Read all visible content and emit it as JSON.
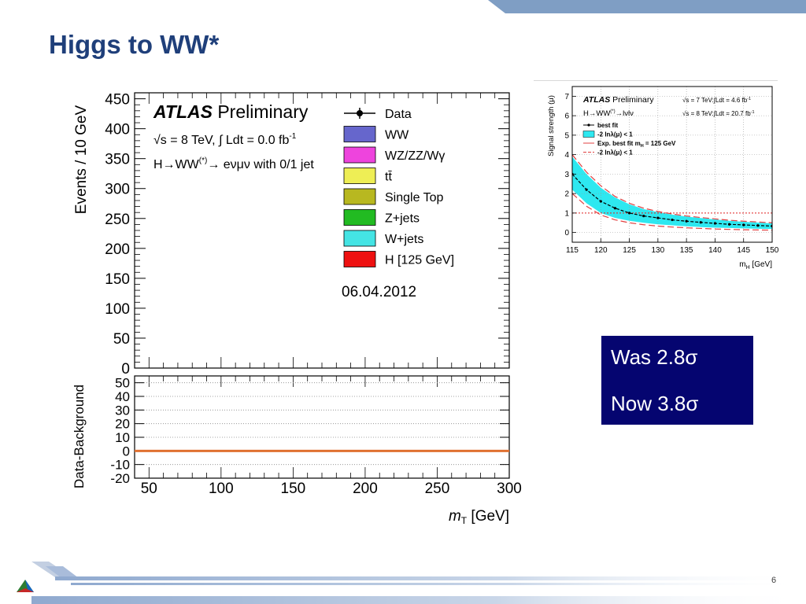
{
  "slide": {
    "title": "Higgs to WW*",
    "page_number": "6",
    "colors": {
      "title": "#1f3f7a",
      "top_band": "#7f9ec4",
      "box_bg": "#050570",
      "box_text": "#ffffff"
    },
    "icons": [
      "logo-triangle-icon"
    ]
  },
  "significance_box": {
    "was_label": "Was 2.8",
    "now_label": "Now 3.8",
    "sigma": "σ"
  },
  "chart_data": [
    {
      "type": "bar",
      "series": [],
      "atlas_label": "ATLAS",
      "preliminary_label": "Preliminary",
      "lumi_label": "√s = 8 TeV, ∫ Ldt =  0.0 fb",
      "lumi_superscript": "-1",
      "channel_label": "H→WW",
      "channel_superscript": "(*)",
      "channel_suffix": "→ eνμν with 0/1 jet",
      "date_label": "06.04.2012",
      "ylabel": "Events / 10 GeV",
      "ylim": [
        0,
        460
      ],
      "yticks": [
        0,
        50,
        100,
        150,
        200,
        250,
        300,
        350,
        400,
        450
      ],
      "xlim": [
        40,
        300
      ],
      "xticks": [
        50,
        100,
        150,
        200,
        250,
        300
      ],
      "xlabel": "m",
      "xlabel_sub": "T",
      "xlabel_unit": " [GeV]",
      "legend": [
        {
          "label": "Data",
          "marker": "point"
        },
        {
          "label": "WW",
          "color": "#6666cc"
        },
        {
          "label": "WZ/ZZ/Wγ",
          "color": "#ee44dd"
        },
        {
          "label": "tt̄",
          "color": "#eeee55"
        },
        {
          "label": "Single Top",
          "color": "#b8b820"
        },
        {
          "label": "Z+jets",
          "color": "#22bb22"
        },
        {
          "label": "W+jets",
          "color": "#44e4e4"
        },
        {
          "label": "H [125 GeV]",
          "color": "#ee1111"
        }
      ],
      "ratio_panel": {
        "ylabel": "Data-Background",
        "ylim": [
          -20,
          55
        ],
        "yticks": [
          -20,
          -10,
          0,
          10,
          20,
          30,
          40,
          50
        ],
        "grid_lines": [
          -10,
          10,
          20,
          30,
          40,
          50
        ],
        "line_value": 0,
        "line_color": "#e07030"
      }
    },
    {
      "type": "line",
      "atlas_label": "ATLAS",
      "preliminary_label": "Preliminary",
      "channel_label": "H→WW",
      "channel_superscript": "(*)",
      "channel_suffix": "→lνlν",
      "energy_7": "√s = 7 TeV:∫Ldt = 4.6 fb",
      "energy_8": "√s = 8 TeV:∫Ldt = 20.7 fb",
      "lumi_superscript": "-1",
      "ylabel": "Signal strength (μ)",
      "xlabel": "m",
      "xlabel_sub": "H",
      "xlabel_unit": " [GeV]",
      "xlim": [
        115,
        150
      ],
      "ylim": [
        -0.5,
        7.5
      ],
      "xticks": [
        115,
        120,
        125,
        130,
        135,
        140,
        145,
        150
      ],
      "yticks": [
        0,
        1,
        2,
        3,
        4,
        5,
        6,
        7
      ],
      "reference_line": 1,
      "legend": [
        {
          "label": "best fit"
        },
        {
          "label": "-2 lnλ(μ) < 1"
        },
        {
          "label": "Exp. best fit  m",
          "sub": "H",
          "suffix": " = 125 GeV"
        },
        {
          "label": "-2 lnλ(μ) < 1"
        }
      ],
      "x": [
        115,
        117.5,
        120,
        122.5,
        125,
        127.5,
        130,
        132.5,
        135,
        137.5,
        140,
        142.5,
        145,
        147.5,
        150
      ],
      "series": [
        {
          "name": "best fit",
          "values": [
            3.0,
            2.2,
            1.6,
            1.25,
            1.0,
            0.85,
            0.75,
            0.65,
            0.58,
            0.52,
            0.47,
            0.42,
            0.39,
            0.36,
            0.33
          ]
        },
        {
          "name": "-2 lnλ(μ) < 1 (up)",
          "values": [
            3.9,
            3.0,
            2.3,
            1.8,
            1.45,
            1.2,
            1.05,
            0.92,
            0.82,
            0.74,
            0.67,
            0.6,
            0.55,
            0.51,
            0.47
          ]
        },
        {
          "name": "-2 lnλ(μ) < 1 (down)",
          "values": [
            2.2,
            1.5,
            1.0,
            0.75,
            0.6,
            0.5,
            0.42,
            0.37,
            0.32,
            0.28,
            0.25,
            0.23,
            0.21,
            0.19,
            0.18
          ]
        },
        {
          "name": "Exp. best fit",
          "values": [
            1.0,
            1.0,
            1.0,
            1.0,
            1.0,
            1.0,
            1.0,
            1.0,
            1.0,
            1.0,
            1.0,
            1.0,
            1.0,
            1.0,
            1.0
          ]
        },
        {
          "name": "Exp. -2 lnλ(μ) < 1 (up)",
          "values": [
            4.0,
            3.1,
            2.4,
            1.85,
            1.5,
            1.25,
            1.08,
            0.95,
            0.85,
            0.77,
            0.7,
            0.63,
            0.58,
            0.54,
            0.5
          ]
        },
        {
          "name": "Exp. -2 lnλ(μ) < 1 (down)",
          "values": [
            2.0,
            1.35,
            0.9,
            0.65,
            0.5,
            0.4,
            0.33,
            0.28,
            0.24,
            0.21,
            0.18,
            0.16,
            0.14,
            0.13,
            0.12
          ]
        }
      ]
    }
  ]
}
